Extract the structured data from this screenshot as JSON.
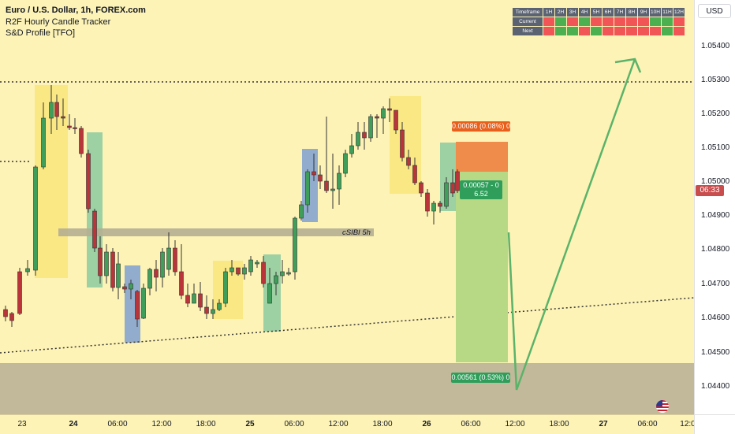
{
  "legend": {
    "symbol": "Euro / U.S. Dollar, 1h, FOREX.com",
    "indicator1": "R2F Hourly Candle Tracker",
    "indicator2": "S&D Profile [TFO]"
  },
  "currency_button": "USD",
  "price_axis": {
    "ticks": [
      "1.05400",
      "1.05300",
      "1.05200",
      "1.05100",
      "1.05000",
      "1.04900",
      "1.04800",
      "1.04700",
      "1.04600",
      "1.04500",
      "1.04400"
    ]
  },
  "current_price_flag": "06:33",
  "time_axis": {
    "ticks": [
      "23",
      "24",
      "06:00",
      "12:00",
      "18:00",
      "25",
      "06:00",
      "12:00",
      "18:00",
      "26",
      "06:00",
      "12:00",
      "18:00",
      "27",
      "06:00",
      "12:0"
    ]
  },
  "timeframe_table": {
    "header_label": "Timeframe",
    "columns": [
      "1H",
      "2H",
      "3H",
      "4H",
      "5H",
      "6H",
      "7H",
      "8H",
      "9H",
      "10H",
      "11H",
      "12H"
    ],
    "rows": [
      {
        "label": "Current",
        "states": [
          "red",
          "green",
          "red",
          "green",
          "red",
          "red",
          "red",
          "red",
          "red",
          "green",
          "green",
          "red"
        ]
      },
      {
        "label": "Next",
        "states": [
          "red",
          "green",
          "green",
          "red",
          "green",
          "red",
          "red",
          "red",
          "red",
          "red",
          "green",
          "red"
        ]
      }
    ],
    "colors": {
      "green": "#4caf50",
      "red": "#f25555"
    }
  },
  "position": {
    "target_label": "0.00086 (0.08%) 0",
    "mid_label_line1": "0.00057 - 0",
    "mid_label_line2": "6.52",
    "stop_label": "0.00561 (0.53%) 0"
  },
  "zone_label": "cSIBI 5h",
  "colors": {
    "background": "#fdf3b6",
    "bull": "#3f9e5a",
    "bear": "#b9353a",
    "supply_zone": "#f9e57c",
    "demand_green": "#8cc9a0",
    "demand_blue": "#7f9fd1",
    "arrow": "#5bb36a",
    "target_box": "#ef8b4b",
    "profit_box": "#b7d986"
  }
}
